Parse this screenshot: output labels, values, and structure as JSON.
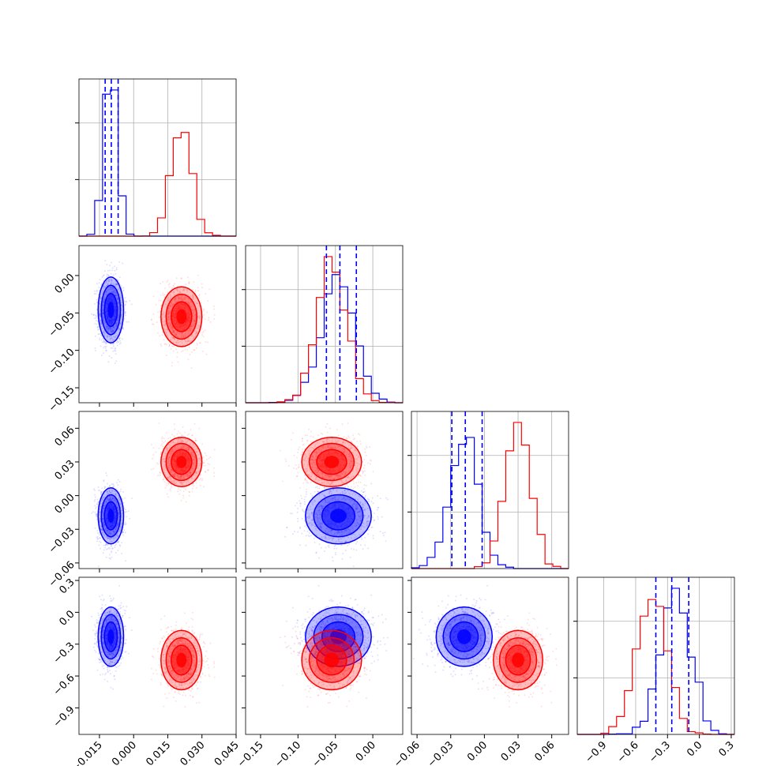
{
  "chart_data": {
    "type": "corner",
    "parameters": 4,
    "series": [
      {
        "color": "#0000ff",
        "mean": [
          -0.01,
          -0.046,
          -0.018,
          -0.23
        ],
        "std": [
          0.0028,
          0.022,
          0.0125,
          0.14
        ],
        "quantile_lines": true
      },
      {
        "color": "#ff0000",
        "mean": [
          0.021,
          -0.055,
          0.03,
          -0.45
        ],
        "std": [
          0.0045,
          0.02,
          0.011,
          0.14
        ],
        "quantile_lines": false
      }
    ],
    "quantiles": {
      "p0": [
        -0.0125,
        -0.062,
        -0.029,
        -0.41
      ],
      "p1": [
        -0.0098,
        -0.044,
        -0.017,
        -0.26
      ],
      "p2": [
        -0.0068,
        -0.022,
        -0.002,
        -0.1
      ]
    },
    "axes": [
      {
        "range": [
          -0.024,
          0.045
        ],
        "ticks": [
          -0.015,
          0.0,
          0.015,
          0.03,
          0.045
        ],
        "tick_labels": [
          "−0.015",
          "0.000",
          "0.015",
          "0.030",
          "0.045"
        ]
      },
      {
        "range": [
          -0.17,
          0.04
        ],
        "ticks": [
          -0.15,
          -0.1,
          -0.05,
          0.0
        ],
        "tick_labels": [
          "−0.15",
          "−0.10",
          "−0.05",
          "0.00"
        ]
      },
      {
        "range": [
          -0.065,
          0.075
        ],
        "ticks": [
          -0.06,
          -0.03,
          0.0,
          0.03,
          0.06
        ],
        "tick_labels": [
          "−0.06",
          "−0.03",
          "0.00",
          "0.03",
          "0.06"
        ]
      },
      {
        "range": [
          -1.15,
          0.33
        ],
        "ticks": [
          -0.9,
          -0.6,
          -0.3,
          0.0,
          0.3
        ],
        "tick_labels": [
          "−0.9",
          "−0.6",
          "−0.3",
          "0.0",
          "0.3"
        ]
      }
    ],
    "grid": true,
    "title": "",
    "legend": "none"
  }
}
